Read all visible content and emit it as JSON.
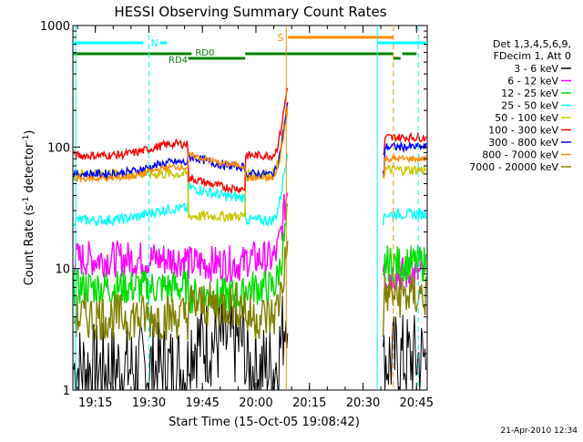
{
  "chart_data": {
    "type": "line",
    "title": "HESSI Observing Summary Count Rates",
    "xlabel": "Start Time (15-Oct-05 19:08:42)",
    "ylabel": "Count Rate (s⁻¹ detector⁻¹)",
    "ylabel_main": "Count Rate (s",
    "ylabel_sup1": "-1",
    "ylabel_mid": " detector",
    "ylabel_sup2": "-1",
    "ylabel_end": ")",
    "footer": "21-Apr-2010 12:34",
    "yscale": "log",
    "ylim": [
      1,
      1000
    ],
    "xlim": [
      "19:08:42",
      "20:48:00"
    ],
    "x_ticks": [
      "19:15",
      "19:30",
      "19:45",
      "20:00",
      "20:15",
      "20:30",
      "20:45"
    ],
    "y_ticks": [
      "1",
      "10",
      "100",
      "1000"
    ],
    "legend_header": [
      "Det 1,3,4,5,6,9,",
      "FDecim 1, Att 0"
    ],
    "series": [
      {
        "name": "3 - 6 keV",
        "color": "#000000"
      },
      {
        "name": "6 - 12 keV",
        "color": "#ff00ff"
      },
      {
        "name": "12 - 25 keV",
        "color": "#00dd00"
      },
      {
        "name": "25 - 50 keV",
        "color": "#00ffff"
      },
      {
        "name": "50 - 100 keV",
        "color": "#c8c800"
      },
      {
        "name": "100 - 300 keV",
        "color": "#ff0000"
      },
      {
        "name": "300 - 800 keV",
        "color": "#0000ff"
      },
      {
        "name": "800 - 7000 keV",
        "color": "#ff8c00"
      },
      {
        "name": "7000 - 20000 keV",
        "color": "#808000"
      }
    ],
    "flags": {
      "n_label": "N",
      "s_label": "S",
      "rd0_label": "RD0",
      "rd4_label": "RD4"
    }
  }
}
